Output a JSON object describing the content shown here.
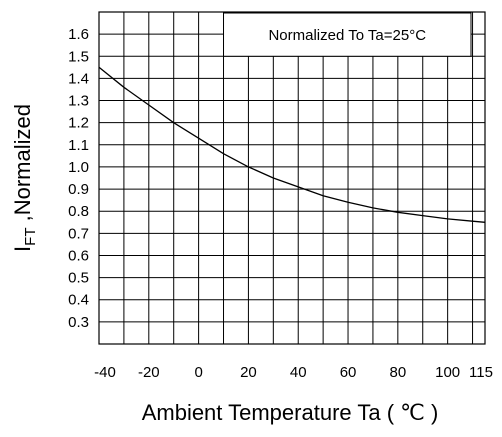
{
  "chart_data": {
    "type": "line",
    "title": "",
    "annotation": "Normalized To Ta=25°C",
    "xlabel": "Ambient Temperature Ta ( ℃ )",
    "ylabel_main": "I",
    "ylabel_sub": "FT",
    "ylabel_rest": " ,Normalized",
    "x_tick_labels": [
      "-40",
      "-20",
      "0",
      "20",
      "40",
      "60",
      "80",
      "100",
      "115"
    ],
    "x_tick_values": [
      -40,
      -20,
      0,
      20,
      40,
      60,
      80,
      100,
      115
    ],
    "y_tick_labels": [
      "1.6",
      "1.5",
      "1.4",
      "1.3",
      "1.2",
      "1.1",
      "1.0",
      "0.9",
      "0.8",
      "0.7",
      "0.6",
      "0.5",
      "0.4",
      "0.3"
    ],
    "y_tick_values": [
      1.6,
      1.5,
      1.4,
      1.3,
      1.2,
      1.1,
      1.0,
      0.9,
      0.8,
      0.7,
      0.6,
      0.5,
      0.4,
      0.3
    ],
    "xlim": [
      -40,
      115
    ],
    "ylim": [
      0.2,
      1.7
    ],
    "grid": true,
    "series": [
      {
        "x": [
          -40,
          -30,
          -20,
          -10,
          0,
          10,
          20,
          30,
          40,
          50,
          60,
          70,
          80,
          90,
          100,
          110,
          115
        ],
        "y": [
          1.45,
          1.36,
          1.28,
          1.2,
          1.13,
          1.06,
          1.0,
          0.95,
          0.91,
          0.87,
          0.84,
          0.815,
          0.795,
          0.78,
          0.765,
          0.755,
          0.75
        ]
      }
    ]
  }
}
